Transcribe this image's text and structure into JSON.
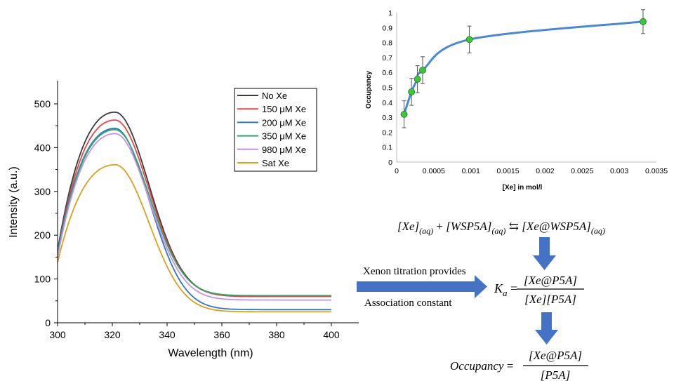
{
  "chart_data": [
    {
      "type": "line",
      "xlabel": "Wavelength (nm)",
      "ylabel": "Intensity (a.u.)",
      "xlim": [
        300,
        400
      ],
      "ylim": [
        0,
        500
      ],
      "xticks": [
        "300",
        "320",
        "340",
        "360",
        "380",
        "400"
      ],
      "yticks": [
        "0",
        "100",
        "200",
        "300",
        "400",
        "500"
      ],
      "legend_position": "top-right",
      "grid": false,
      "series": [
        {
          "name": "No Xe",
          "color": "#3a3a3a",
          "peak": 481,
          "start": 165,
          "plateau": 60,
          "drop": 356
        },
        {
          "name": "150 μM Xe",
          "color": "#e8474a",
          "peak": 463,
          "start": 160,
          "plateau": 60,
          "drop": 355
        },
        {
          "name": "200 μM Xe",
          "color": "#2f77c0",
          "peak": 444,
          "start": 160,
          "plateau": 30,
          "drop": 354
        },
        {
          "name": "350 μM Xe",
          "color": "#2ea86d",
          "peak": 441,
          "start": 155,
          "plateau": 62,
          "drop": 357
        },
        {
          "name": "980 μM Xe",
          "color": "#c690e6",
          "peak": 432,
          "start": 150,
          "plateau": 52,
          "drop": 356
        },
        {
          "name": "Sat Xe",
          "color": "#d8a11c",
          "peak": 361,
          "start": 138,
          "plateau": 25,
          "drop": 356
        }
      ]
    },
    {
      "type": "scatter",
      "xlabel": "[Xe] in mol/l",
      "ylabel": "Occupancy",
      "xlim": [
        0,
        0.0035
      ],
      "ylim": [
        0,
        1
      ],
      "xticks": [
        "0",
        "0.0005",
        "0.001",
        "0.0015",
        "0.002",
        "0.0025",
        "0.003",
        "0.0035"
      ],
      "yticks": [
        "0",
        "0.1",
        "0.2",
        "0.3",
        "0.4",
        "0.5",
        "0.6",
        "0.7",
        "0.8",
        "0.9",
        "1"
      ],
      "grid": false,
      "point_color": "#33cc33",
      "fit_color": "#4a88d6",
      "x": [
        0.0001,
        0.0002,
        0.00028,
        0.00035,
        0.00098,
        0.00332
      ],
      "y": [
        0.32,
        0.47,
        0.555,
        0.615,
        0.82,
        0.94
      ],
      "err": [
        0.09,
        0.09,
        0.09,
        0.09,
        0.09,
        0.08
      ]
    }
  ],
  "diagram": {
    "equilibrium": {
      "lhs1": "[Xe]",
      "lhs1_sub": "(aq)",
      "plus": " + ",
      "lhs2": "[WSP5A]",
      "lhs2_sub": "(aq)",
      "arrow": " ⇆ ",
      "rhs": "[Xe@WSP5A]",
      "rhs_sub": "(aq)"
    },
    "arrow_text_top": "Xenon titration provides",
    "arrow_text_bottom": "Association constant",
    "ka": {
      "symbol": "K",
      "sub": "a",
      "eq": " = ",
      "numerator": "[Xe@P5A]",
      "denominator": "[Xe][P5A]"
    },
    "occupancy": {
      "label": "Occupancy",
      "eq": " = ",
      "numerator": "[Xe@P5A]",
      "denominator": "[P5A]"
    },
    "arrow_color": "#4472c4"
  }
}
